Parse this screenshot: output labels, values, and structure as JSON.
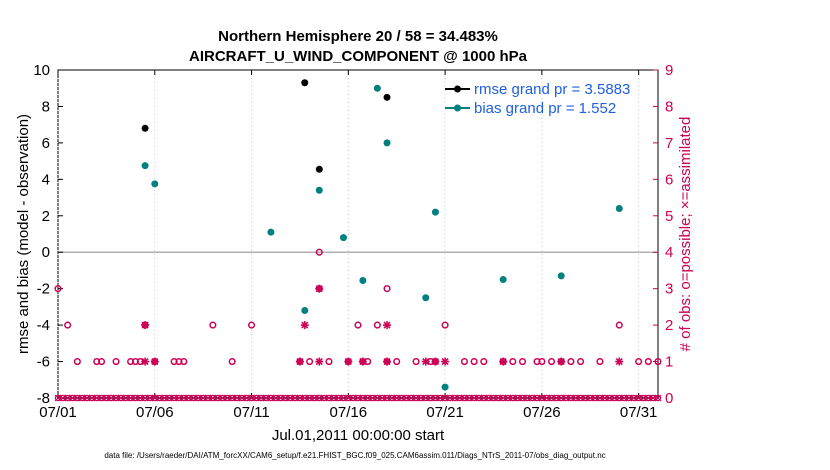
{
  "chart_data": {
    "type": "scatter",
    "title": "Northern Hemisphere 20 / 58 = 34.483%",
    "subtitle": "AIRCRAFT_U_WIND_COMPONENT @ 1000 hPa",
    "xlabel": "Jul.01,2011 00:00:00 start",
    "ylabel_left": "rmse and bias (model - observation)",
    "ylabel_right": "# of obs: o=possible; ×=assimilated",
    "xlim": [
      0,
      31
    ],
    "ylim_left": [
      -8,
      10
    ],
    "ylim_right": [
      0,
      9
    ],
    "x_ticks": [
      0,
      5,
      10,
      15,
      20,
      25,
      30
    ],
    "x_ticklabels": [
      "07/01",
      "07/06",
      "07/11",
      "07/16",
      "07/21",
      "07/26",
      "07/31"
    ],
    "y_ticks_left": [
      -8,
      -6,
      -4,
      -2,
      0,
      2,
      4,
      6,
      8,
      10
    ],
    "y_ticks_right": [
      0,
      1,
      2,
      3,
      4,
      5,
      6,
      7,
      8,
      9
    ],
    "legend": [
      {
        "label": "rmse grand pr = 3.5883",
        "color": "#000000"
      },
      {
        "label": "bias grand pr = 1.552",
        "color": "#008080"
      }
    ],
    "series": [
      {
        "name": "rmse",
        "color": "#000000",
        "points": [
          [
            4.5,
            6.8
          ],
          [
            12.75,
            9.3
          ],
          [
            13.5,
            4.55
          ],
          [
            17.0,
            8.5
          ]
        ]
      },
      {
        "name": "bias",
        "color": "#008080",
        "points": [
          [
            4.5,
            4.75
          ],
          [
            5.0,
            3.75
          ],
          [
            11.0,
            1.1
          ],
          [
            12.75,
            -3.2
          ],
          [
            13.5,
            3.4
          ],
          [
            14.75,
            0.8
          ],
          [
            15.75,
            -1.55
          ],
          [
            16.5,
            9.0
          ],
          [
            17.0,
            6.0
          ],
          [
            19.0,
            -2.5
          ],
          [
            19.5,
            2.2
          ],
          [
            20.0,
            -7.4
          ],
          [
            23.0,
            -1.5
          ],
          [
            26.0,
            -1.3
          ],
          [
            29.0,
            2.4
          ]
        ]
      },
      {
        "name": "obs_possible",
        "color": "#cc0055",
        "points": [
          [
            0,
            3
          ],
          [
            0.5,
            2
          ],
          [
            1,
            1
          ],
          [
            2,
            1
          ],
          [
            2.25,
            1
          ],
          [
            3,
            1
          ],
          [
            3.75,
            1
          ],
          [
            4,
            1
          ],
          [
            4.25,
            1
          ],
          [
            4.5,
            2
          ],
          [
            5,
            1
          ],
          [
            6,
            1
          ],
          [
            6.25,
            1
          ],
          [
            6.5,
            1
          ],
          [
            8,
            2
          ],
          [
            9,
            1
          ],
          [
            10,
            2
          ],
          [
            12.5,
            1
          ],
          [
            13,
            1
          ],
          [
            13.5,
            4
          ],
          [
            13.5,
            3
          ],
          [
            14,
            1
          ],
          [
            15,
            1
          ],
          [
            15.5,
            2
          ],
          [
            15.75,
            1
          ],
          [
            16,
            1
          ],
          [
            16.5,
            2
          ],
          [
            17,
            3
          ],
          [
            17,
            1
          ],
          [
            17.5,
            1
          ],
          [
            18.5,
            1
          ],
          [
            19.25,
            1
          ],
          [
            19.5,
            1
          ],
          [
            20,
            2
          ],
          [
            21,
            1
          ],
          [
            21.5,
            1
          ],
          [
            22,
            1
          ],
          [
            23,
            1
          ],
          [
            23.5,
            1
          ],
          [
            24,
            1
          ],
          [
            24.75,
            1
          ],
          [
            25,
            1
          ],
          [
            25.5,
            1
          ],
          [
            26,
            1
          ],
          [
            26.5,
            1
          ],
          [
            27,
            1
          ],
          [
            28,
            1
          ],
          [
            29,
            2
          ],
          [
            30,
            1
          ],
          [
            30.5,
            1
          ],
          [
            31,
            1
          ]
        ]
      },
      {
        "name": "obs_assimilated",
        "color": "#cc0055",
        "points": [
          [
            4.5,
            2
          ],
          [
            4.5,
            1
          ],
          [
            5,
            1
          ],
          [
            12.5,
            1
          ],
          [
            12.75,
            2
          ],
          [
            13.5,
            3
          ],
          [
            13.5,
            1
          ],
          [
            15,
            1
          ],
          [
            15.75,
            1
          ],
          [
            17,
            2
          ],
          [
            17,
            1
          ],
          [
            19,
            1
          ],
          [
            19.5,
            1
          ],
          [
            20,
            1
          ],
          [
            23,
            1
          ],
          [
            26,
            1
          ],
          [
            29,
            1
          ]
        ]
      }
    ],
    "baseline_value": 0,
    "footer": "data file: /Users/raeder/DAI/ATM_forcXX/CAM6_setup/f.e21.FHIST_BGC.f09_025.CAM6assim.011/Diags_NTrS_2011-07/obs_diag_output.nc"
  },
  "colors": {
    "rmse": "#000000",
    "bias": "#008080",
    "obs": "#cc0055",
    "legend_text": "#1f5fe0",
    "baseline": "#b0b0b0"
  }
}
